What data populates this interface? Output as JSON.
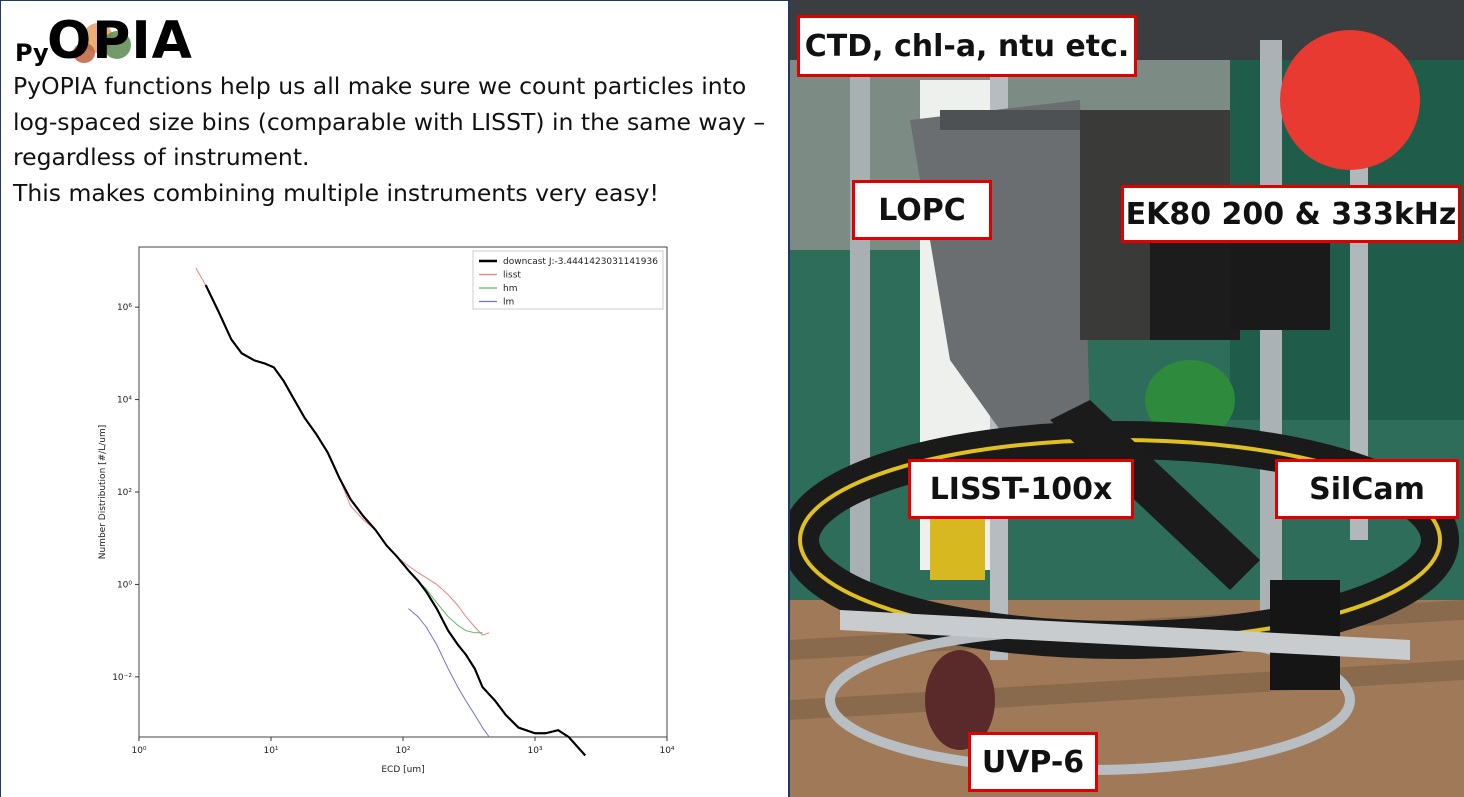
{
  "logo": {
    "prefix": "Py",
    "name": "OPIA"
  },
  "intro": {
    "line1": "PyOPIA functions help us all make sure we count particles into",
    "line2": "log-spaced size bins (comparable with LISST) in the same way –",
    "line3": "regardless of instrument.",
    "line4": "This makes combining multiple instruments very easy!"
  },
  "chart_data": {
    "type": "line",
    "xscale": "log",
    "yscale": "log",
    "xlim": [
      1,
      10000
    ],
    "ylim": [
      0.0005,
      20000000
    ],
    "xlabel": "ECD [um]",
    "ylabel": "Number Distribution [#/L/um]",
    "xticks": [
      "10^0",
      "10^1",
      "10^2",
      "10^3",
      "10^4"
    ],
    "yticks": [
      "10^-2",
      "10^0",
      "10^2",
      "10^4",
      "10^6"
    ],
    "legend_position": "top-right",
    "series": [
      {
        "name": "downcast J:-3.4441423031141936",
        "color": "#000000",
        "x": [
          3.2,
          4,
          5,
          6,
          7.5,
          9,
          10.5,
          12.5,
          15,
          18,
          22,
          27,
          33,
          40,
          50,
          62,
          75,
          90,
          110,
          130,
          150,
          180,
          220,
          260,
          300,
          350,
          400,
          500,
          600,
          750,
          1000,
          1200,
          1500,
          1800,
          2400
        ],
        "y": [
          3000000,
          800000,
          200000,
          100000,
          70000,
          60000,
          50000,
          25000,
          10000,
          4000,
          1800,
          700,
          200,
          70,
          30,
          15,
          7,
          4,
          2,
          1.2,
          0.7,
          0.3,
          0.1,
          0.05,
          0.03,
          0.015,
          0.006,
          0.003,
          0.0015,
          0.0008,
          0.0006,
          0.0006,
          0.0007,
          0.0005,
          0.0002
        ]
      },
      {
        "name": "lisst",
        "color": "#f08080",
        "x": [
          2.7,
          3.2,
          4,
          5,
          6,
          7.5,
          9,
          10.5,
          12.5,
          15,
          18,
          22,
          27,
          33,
          40,
          50,
          62,
          75,
          90,
          110,
          130,
          150,
          180,
          220,
          260,
          300,
          350,
          400,
          450
        ],
        "y": [
          7000000,
          3000000,
          800000,
          200000,
          100000,
          70000,
          60000,
          50000,
          25000,
          10000,
          4000,
          1800,
          700,
          200,
          50,
          25,
          15,
          7,
          4,
          2.5,
          1.8,
          1.4,
          1,
          0.6,
          0.35,
          0.2,
          0.12,
          0.08,
          0.09
        ]
      },
      {
        "name": "hm",
        "color": "#5cb85c",
        "x": [
          90,
          110,
          130,
          150,
          180,
          220,
          260,
          300,
          350,
          400
        ],
        "y": [
          4,
          2,
          1.2,
          0.8,
          0.4,
          0.2,
          0.13,
          0.1,
          0.09,
          0.09
        ]
      },
      {
        "name": "lm",
        "color": "#7070e0",
        "x": [
          110,
          130,
          150,
          180,
          220,
          260,
          300,
          350,
          400,
          450
        ],
        "y": [
          0.3,
          0.2,
          0.12,
          0.05,
          0.015,
          0.006,
          0.003,
          0.0015,
          0.0008,
          0.0005
        ]
      }
    ]
  },
  "labels": {
    "ctd": "CTD, chl-a, ntu etc.",
    "lopc": "LOPC",
    "ek80": "EK80 200 & 333kHz",
    "lisst": "LISST-100x",
    "silcam": "SilCam",
    "uvp": "UVP-6"
  },
  "colors": {
    "label_border": "#e00000",
    "divider": "#1f3864"
  }
}
